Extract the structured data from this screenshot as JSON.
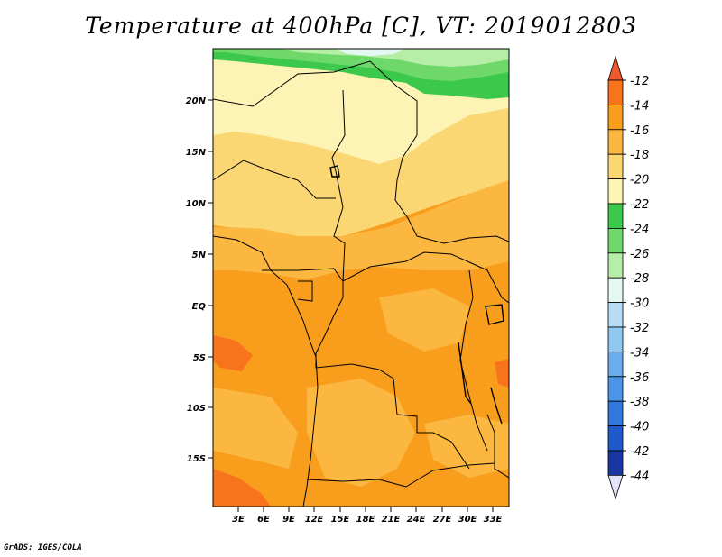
{
  "title": "Temperature at 400hPa [C], VT: 2019012803",
  "credit": "GrADS: IGES/COLA",
  "map": {
    "lat_labels": [
      "20N",
      "15N",
      "10N",
      "5N",
      "EQ",
      "5S",
      "10S",
      "15S"
    ],
    "lon_labels": [
      "3E",
      "6E",
      "9E",
      "12E",
      "15E",
      "18E",
      "21E",
      "24E",
      "27E",
      "30E",
      "33E"
    ]
  },
  "colorbar": {
    "labels": [
      "-12",
      "-14",
      "-16",
      "-18",
      "-20",
      "-22",
      "-24",
      "-26",
      "-28",
      "-30",
      "-32",
      "-34",
      "-36",
      "-38",
      "-40",
      "-42",
      "-44"
    ],
    "colors": {
      "above_-12": "#ee5a2c",
      "-14_to_-12": "#f7731c",
      "-16_to_-14": "#f89d1c",
      "-18_to_-16": "#fbb73f",
      "-20_to_-18": "#fbd774",
      "-22_to_-20": "#fdf3b4",
      "-24_to_-22": "#3cc84a",
      "-26_to_-24": "#6ed96a",
      "-28_to_-26": "#b6eea8",
      "-30_to_-28": "#e6f8f4",
      "-32_to_-30": "#b8dcf6",
      "-34_to_-32": "#90c8f0",
      "-36_to_-34": "#6aaef0",
      "-38_to_-36": "#4c94e8",
      "-40_to_-38": "#3078dc",
      "-42_to_-40": "#1e5acc",
      "-44_to_-42": "#1a36a0",
      "below_-44": "#0e1878",
      "lower_arrow": "#e2e2f8"
    }
  }
}
